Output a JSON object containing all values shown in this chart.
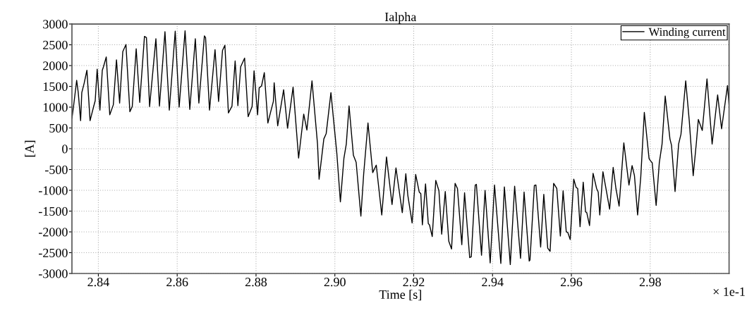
{
  "chart_data": {
    "type": "line",
    "title": "Ialpha",
    "xlabel": "Time [s]",
    "ylabel": "[A]",
    "annotations": [
      "× 1e-1"
    ],
    "xlim": [
      2.8333,
      3.0
    ],
    "xticks": [
      2.84,
      2.86,
      2.88,
      {
        "value": 2.9,
        "label": "2.90"
      },
      2.92,
      2.94,
      2.96,
      2.98
    ],
    "ylim": [
      -3000,
      3000
    ],
    "yticks": [
      -3000,
      -2500,
      -2000,
      -1500,
      -1000,
      -500,
      0,
      500,
      1000,
      1500,
      2000,
      2500,
      3000
    ],
    "grid": true,
    "legend": "top right",
    "marker": "none",
    "line_style": "solid",
    "series": [
      {
        "name": "Winding current",
        "color": "#000000",
        "x": [
          2.8333,
          2.8337,
          2.8345,
          2.8349,
          2.8355,
          2.8358,
          2.8364,
          2.8371,
          2.8379,
          2.8388,
          2.8392,
          2.8397,
          2.8404,
          2.841,
          2.8413,
          2.842,
          2.8429,
          2.8438,
          2.8446,
          2.8454,
          2.8462,
          2.847,
          2.848,
          2.8486,
          2.8496,
          2.8505,
          2.8517,
          2.8522,
          2.853,
          2.8546,
          2.8555,
          2.8569,
          2.858,
          2.8595,
          2.8605,
          2.862,
          2.8632,
          2.8646,
          2.8655,
          2.8669,
          2.8672,
          2.8682,
          2.8696,
          2.8705,
          2.8715,
          2.8721,
          2.873,
          2.8739,
          2.8747,
          2.8754,
          2.8761,
          2.8771,
          2.878,
          2.879,
          2.8795,
          2.8804,
          2.8808,
          2.8814,
          2.8821,
          2.883,
          2.8839,
          2.8844,
          2.8846,
          2.8855,
          2.887,
          2.888,
          2.8894,
          2.8908,
          2.8921,
          2.8929,
          2.8942,
          2.8956,
          2.896,
          2.8972,
          2.8978,
          2.899,
          2.9005,
          2.9014,
          2.9023,
          2.9029,
          2.9036,
          2.9047,
          2.9054,
          2.9066,
          2.9073,
          2.9084,
          2.9096,
          2.9105,
          2.9119,
          2.9131,
          2.9145,
          2.9155,
          2.9171,
          2.918,
          2.9185,
          2.9196,
          2.9205,
          2.9214,
          2.9218,
          2.9222,
          2.923,
          2.9237,
          2.924,
          2.9247,
          2.9256,
          2.9264,
          2.9271,
          2.928,
          2.9289,
          2.9296,
          2.9305,
          2.9311,
          2.9322,
          2.9329,
          2.9342,
          2.9346,
          2.9356,
          2.9359,
          2.9372,
          2.9381,
          2.9394,
          2.9405,
          2.9421,
          2.943,
          2.9445,
          2.9456,
          2.9471,
          2.948,
          2.9493,
          2.9495,
          2.9506,
          2.951,
          2.9522,
          2.953,
          2.954,
          2.9546,
          2.9555,
          2.9563,
          2.9572,
          2.9579,
          2.9587,
          2.9591,
          2.9597,
          2.9606,
          2.9612,
          2.9616,
          2.9622,
          2.963,
          2.9636,
          2.9639,
          2.9646,
          2.9655,
          2.9664,
          2.9668,
          2.9672,
          2.968,
          2.9688,
          2.9697,
          2.9706,
          2.9713,
          2.9721,
          2.9733,
          2.9746,
          2.9754,
          2.976,
          2.9768,
          2.9776,
          2.9785,
          2.9797,
          2.98,
          2.9805,
          2.9815,
          2.9823,
          2.983,
          2.9838,
          2.985,
          2.9854,
          2.9863,
          2.9872,
          2.9878,
          2.989,
          2.9899,
          2.9909,
          2.9917,
          2.9922,
          2.9932,
          2.9944,
          2.9957,
          2.9971,
          2.9981,
          2.9996,
          3.0
        ],
        "values": [
          732,
          1013,
          1644,
          1351,
          676,
          1351,
          1576,
          1886,
          676,
          1013,
          1154,
          1914,
          929,
          1886,
          1971,
          2207,
          816,
          1058,
          2139,
          1098,
          2336,
          2505,
          890,
          1013,
          2404,
          1115,
          2702,
          2674,
          1013,
          2646,
          1025,
          2815,
          929,
          2826,
          1002,
          2838,
          946,
          2646,
          1098,
          2714,
          2674,
          929,
          2381,
          1137,
          2365,
          2488,
          861,
          1025,
          2111,
          1036,
          1971,
          2179,
          771,
          1013,
          1875,
          816,
          1464,
          1509,
          1830,
          619,
          957,
          1137,
          1588,
          552,
          1419,
          495,
          1481,
          -225,
          833,
          450,
          1633,
          113,
          -732,
          236,
          366,
          1351,
          -113,
          -1278,
          -225,
          113,
          1030,
          -158,
          -327,
          -1621,
          -619,
          619,
          -574,
          -394,
          -1593,
          -197,
          -1340,
          -462,
          -1537,
          -602,
          -1115,
          -1785,
          -619,
          -1042,
          -1081,
          -1830,
          -845,
          -1802,
          -1830,
          -2111,
          -760,
          -1013,
          -2055,
          -1030,
          -2224,
          -2410,
          -833,
          -957,
          -2308,
          -1058,
          -2618,
          -2601,
          -873,
          -856,
          -2562,
          -1002,
          -2747,
          -873,
          -2759,
          -918,
          -2787,
          -901,
          -2635,
          -1042,
          -2702,
          -2674,
          -884,
          -873,
          -2365,
          -1098,
          -2393,
          -2466,
          -833,
          -957,
          -2100,
          -1013,
          -1999,
          -2016,
          -2184,
          -732,
          -929,
          -957,
          -1875,
          -805,
          -1520,
          -1537,
          -1847,
          -591,
          -957,
          -1042,
          -1593,
          -552,
          -974,
          -1453,
          -450,
          -957,
          -1379,
          141,
          -873,
          -405,
          -647,
          -1593,
          -676,
          873,
          -236,
          -282,
          -338,
          -1362,
          -338,
          113,
          1267,
          236,
          84,
          -1030,
          113,
          349,
          1633,
          676,
          -647,
          141,
          704,
          439,
          1678,
          113,
          1295,
          479,
          1520,
          1070
        ]
      }
    ]
  }
}
